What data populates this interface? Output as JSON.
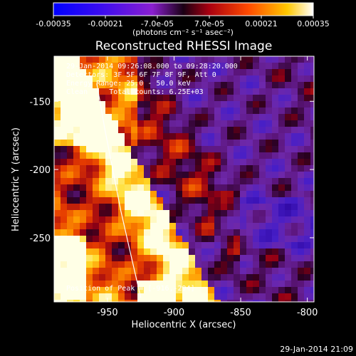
{
  "colorbar": {
    "ticks": [
      "-0.00035",
      "-0.00021",
      "-7.0e-05",
      "7.0e-05",
      "0.00021",
      "0.00035"
    ],
    "unit_label": "(photons cm⁻² s⁻¹ asec⁻²)",
    "range": [
      -0.00035,
      0.00035
    ]
  },
  "chart_data": {
    "type": "heatmap",
    "title": "Reconstructed RHESSI Image",
    "xlabel": "Heliocentric X (arcsec)",
    "ylabel": "Heliocentric Y (arcsec)",
    "x_ticks": [
      "-950",
      "-900",
      "-850",
      "-800"
    ],
    "y_ticks": [
      "-150",
      "-200",
      "-250"
    ],
    "xlim": [
      -990,
      -795
    ],
    "ylim": [
      -297,
      -117
    ],
    "annotations": [
      "29-Jan-2014 09:26:08.000 to 09:28:20.000",
      "Detectors: 3F 5F 6F 7F 8F 9F, Att 0",
      "Energy Range: 25.0 - 50.0 keV",
      "Clean     Total counts: 6.25E+03"
    ],
    "peak_label": "Position of Peak = [-916,-294]",
    "peak_position": [
      -916,
      -294
    ],
    "limb_curve": [
      [
        -958,
        -137
      ],
      [
        -952,
        -170
      ],
      [
        -946,
        -200
      ],
      [
        -940,
        -230
      ],
      [
        -933,
        -260
      ],
      [
        -925,
        -294
      ]
    ],
    "colormap": "blue-purple-red-yellow-white"
  },
  "footer": {
    "timestamp": "29-Jan-2014 21:09"
  }
}
